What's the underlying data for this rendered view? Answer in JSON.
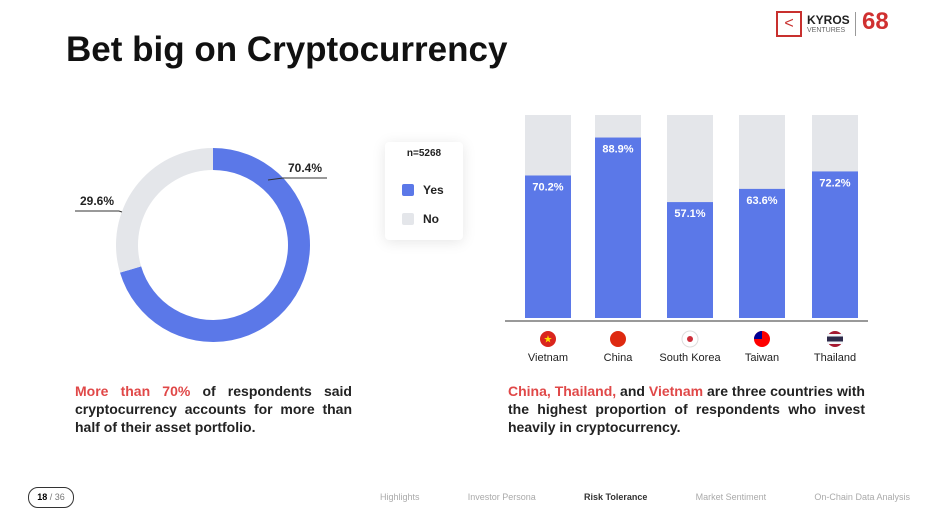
{
  "header": {
    "title": "Bet big on Cryptocurrency",
    "logo_name": "KYROS",
    "logo_sub": "VENTURES",
    "logo_mark": "68"
  },
  "chart_data": [
    {
      "type": "pie",
      "donut": true,
      "note": "n=5268",
      "categories": [
        "Yes",
        "No"
      ],
      "values": [
        70.4,
        29.6
      ],
      "value_labels": [
        "70.4%",
        "29.6%"
      ],
      "colors": [
        "#5b78e8",
        "#e4e6ea"
      ],
      "legend": "right"
    },
    {
      "type": "bar",
      "categories": [
        "Vietnam",
        "China",
        "South Korea",
        "Taiwan",
        "Thailand"
      ],
      "ylim": [
        0,
        100
      ],
      "series": [
        {
          "name": "Yes",
          "color": "#5b78e8",
          "values": [
            70.2,
            88.9,
            57.1,
            63.6,
            72.2
          ],
          "value_labels": [
            "70.2%",
            "88.9%",
            "57.1%",
            "63.6%",
            "72.2%"
          ]
        }
      ],
      "track_color": "#e4e6ea"
    }
  ],
  "captions": {
    "left": {
      "highlight": "More than 70%",
      "rest": " of respondents said cryptocurrency accounts for more than half of their asset portfolio."
    },
    "right": {
      "h1": "China, Thailand,",
      "t1": " and ",
      "h2": "Vietnam",
      "t2": " are three countries with the highest proportion of respondents who invest heavily in cryptocurrency."
    }
  },
  "footer": {
    "page": "18",
    "total": "/ 36",
    "nav": [
      "Highlights",
      "Investor Persona",
      "Risk Tolerance",
      "Market Sentiment",
      "On-Chain Data Analysis"
    ],
    "active": 2
  }
}
